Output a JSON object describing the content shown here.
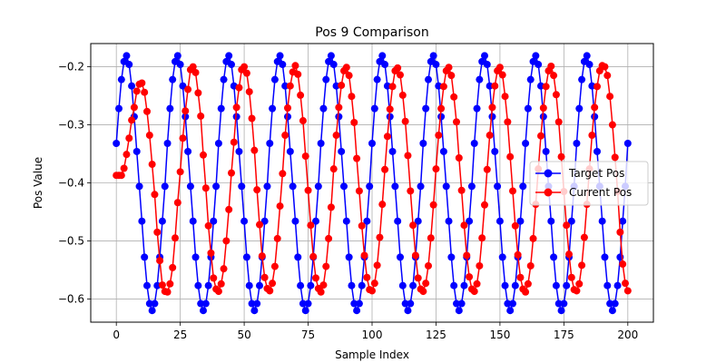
{
  "chart_data": {
    "type": "line",
    "title": "Pos 9 Comparison",
    "xlabel": "Sample Index",
    "ylabel": "Pos Value",
    "xlim": [
      -10,
      210
    ],
    "ylim": [
      -0.64,
      -0.16
    ],
    "xticks": [
      0,
      25,
      50,
      75,
      100,
      125,
      150,
      175,
      200
    ],
    "yticks": [
      -0.6,
      -0.5,
      -0.4,
      -0.3,
      -0.2
    ],
    "grid": true,
    "legend": {
      "placement": "center-right",
      "entries": [
        "Target Pos",
        "Current Pos"
      ]
    },
    "x": [
      0,
      1,
      2,
      3,
      4,
      5,
      6,
      7,
      8,
      9,
      10,
      11,
      12,
      13,
      14,
      15,
      16,
      17,
      18,
      19,
      20,
      21,
      22,
      23,
      24,
      25,
      26,
      27,
      28,
      29,
      30,
      31,
      32,
      33,
      34,
      35,
      36,
      37,
      38,
      39,
      40,
      41,
      42,
      43,
      44,
      45,
      46,
      47,
      48,
      49,
      50,
      51,
      52,
      53,
      54,
      55,
      56,
      57,
      58,
      59,
      60,
      61,
      62,
      63,
      64,
      65,
      66,
      67,
      68,
      69,
      70,
      71,
      72,
      73,
      74,
      75,
      76,
      77,
      78,
      79,
      80,
      81,
      82,
      83,
      84,
      85,
      86,
      87,
      88,
      89,
      90,
      91,
      92,
      93,
      94,
      95,
      96,
      97,
      98,
      99,
      100,
      101,
      102,
      103,
      104,
      105,
      106,
      107,
      108,
      109,
      110,
      111,
      112,
      113,
      114,
      115,
      116,
      117,
      118,
      119,
      120,
      121,
      122,
      123,
      124,
      125,
      126,
      127,
      128,
      129,
      130,
      131,
      132,
      133,
      134,
      135,
      136,
      137,
      138,
      139,
      140,
      141,
      142,
      143,
      144,
      145,
      146,
      147,
      148,
      149,
      150,
      151,
      152,
      153,
      154,
      155,
      156,
      157,
      158,
      159,
      160,
      161,
      162,
      163,
      164,
      165,
      166,
      167,
      168,
      169,
      170,
      171,
      172,
      173,
      174,
      175,
      176,
      177,
      178,
      179,
      180,
      181,
      182,
      183,
      184,
      185,
      186,
      187,
      188,
      189,
      190,
      191,
      192,
      193,
      194,
      195,
      196,
      197,
      198,
      199,
      200
    ],
    "series": [
      {
        "name": "Target Pos",
        "color": "#0000ff",
        "values": [
          -0.332,
          -0.272,
          -0.222,
          -0.191,
          -0.181,
          -0.196,
          -0.233,
          -0.286,
          -0.346,
          -0.406,
          -0.466,
          -0.528,
          -0.577,
          -0.608,
          -0.62,
          -0.608,
          -0.577,
          -0.528,
          -0.466,
          -0.406,
          -0.332,
          -0.272,
          -0.222,
          -0.191,
          -0.181,
          -0.196,
          -0.233,
          -0.286,
          -0.346,
          -0.406,
          -0.466,
          -0.528,
          -0.577,
          -0.608,
          -0.62,
          -0.608,
          -0.577,
          -0.528,
          -0.466,
          -0.406,
          -0.332,
          -0.272,
          -0.222,
          -0.191,
          -0.181,
          -0.196,
          -0.233,
          -0.286,
          -0.346,
          -0.406,
          -0.466,
          -0.528,
          -0.577,
          -0.608,
          -0.62,
          -0.608,
          -0.577,
          -0.528,
          -0.466,
          -0.406,
          -0.332,
          -0.272,
          -0.222,
          -0.191,
          -0.181,
          -0.196,
          -0.233,
          -0.286,
          -0.346,
          -0.406,
          -0.466,
          -0.528,
          -0.577,
          -0.608,
          -0.62,
          -0.608,
          -0.577,
          -0.528,
          -0.466,
          -0.406,
          -0.332,
          -0.272,
          -0.222,
          -0.191,
          -0.181,
          -0.196,
          -0.233,
          -0.286,
          -0.346,
          -0.406,
          -0.466,
          -0.528,
          -0.577,
          -0.608,
          -0.62,
          -0.608,
          -0.577,
          -0.528,
          -0.466,
          -0.406,
          -0.332,
          -0.272,
          -0.222,
          -0.191,
          -0.181,
          -0.196,
          -0.233,
          -0.286,
          -0.346,
          -0.406,
          -0.466,
          -0.528,
          -0.577,
          -0.608,
          -0.62,
          -0.608,
          -0.577,
          -0.528,
          -0.466,
          -0.406,
          -0.332,
          -0.272,
          -0.222,
          -0.191,
          -0.181,
          -0.196,
          -0.233,
          -0.286,
          -0.346,
          -0.406,
          -0.466,
          -0.528,
          -0.577,
          -0.608,
          -0.62,
          -0.608,
          -0.577,
          -0.528,
          -0.466,
          -0.406,
          -0.332,
          -0.272,
          -0.222,
          -0.191,
          -0.181,
          -0.196,
          -0.233,
          -0.286,
          -0.346,
          -0.406,
          -0.466,
          -0.528,
          -0.577,
          -0.608,
          -0.62,
          -0.608,
          -0.577,
          -0.528,
          -0.466,
          -0.406,
          -0.332,
          -0.272,
          -0.222,
          -0.191,
          -0.181,
          -0.196,
          -0.233,
          -0.286,
          -0.346,
          -0.406,
          -0.466,
          -0.528,
          -0.577,
          -0.608,
          -0.62,
          -0.608,
          -0.577,
          -0.528,
          -0.466,
          -0.406,
          -0.332,
          -0.272,
          -0.222,
          -0.191,
          -0.181,
          -0.196,
          -0.233,
          -0.286,
          -0.346,
          -0.406,
          -0.466,
          -0.528,
          -0.577,
          -0.608,
          -0.62,
          -0.608,
          -0.577,
          -0.528,
          -0.466,
          -0.406,
          -0.332
        ]
      },
      {
        "name": "Current Pos",
        "color": "#ff0000",
        "values": [
          -0.387,
          -0.387,
          -0.387,
          -0.375,
          -0.351,
          -0.323,
          -0.292,
          -0.27,
          -0.242,
          -0.23,
          -0.228,
          -0.244,
          -0.277,
          -0.318,
          -0.368,
          -0.42,
          -0.485,
          -0.534,
          -0.576,
          -0.587,
          -0.588,
          -0.574,
          -0.546,
          -0.495,
          -0.434,
          -0.381,
          -0.323,
          -0.276,
          -0.239,
          -0.205,
          -0.2,
          -0.21,
          -0.245,
          -0.285,
          -0.352,
          -0.409,
          -0.474,
          -0.521,
          -0.564,
          -0.583,
          -0.587,
          -0.574,
          -0.548,
          -0.5,
          -0.446,
          -0.383,
          -0.33,
          -0.27,
          -0.236,
          -0.205,
          -0.2,
          -0.211,
          -0.243,
          -0.289,
          -0.344,
          -0.412,
          -0.472,
          -0.526,
          -0.563,
          -0.582,
          -0.586,
          -0.573,
          -0.544,
          -0.496,
          -0.44,
          -0.384,
          -0.318,
          -0.271,
          -0.233,
          -0.209,
          -0.198,
          -0.213,
          -0.249,
          -0.293,
          -0.354,
          -0.413,
          -0.473,
          -0.527,
          -0.564,
          -0.582,
          -0.588,
          -0.576,
          -0.544,
          -0.496,
          -0.442,
          -0.376,
          -0.318,
          -0.27,
          -0.232,
          -0.207,
          -0.201,
          -0.215,
          -0.251,
          -0.296,
          -0.358,
          -0.414,
          -0.474,
          -0.525,
          -0.563,
          -0.584,
          -0.586,
          -0.573,
          -0.542,
          -0.494,
          -0.437,
          -0.377,
          -0.32,
          -0.273,
          -0.234,
          -0.207,
          -0.202,
          -0.214,
          -0.249,
          -0.294,
          -0.353,
          -0.414,
          -0.473,
          -0.525,
          -0.564,
          -0.583,
          -0.587,
          -0.573,
          -0.543,
          -0.495,
          -0.438,
          -0.376,
          -0.318,
          -0.272,
          -0.234,
          -0.207,
          -0.201,
          -0.215,
          -0.252,
          -0.295,
          -0.357,
          -0.413,
          -0.473,
          -0.525,
          -0.562,
          -0.583,
          -0.587,
          -0.574,
          -0.543,
          -0.495,
          -0.438,
          -0.377,
          -0.318,
          -0.27,
          -0.233,
          -0.207,
          -0.201,
          -0.214,
          -0.251,
          -0.295,
          -0.355,
          -0.414,
          -0.474,
          -0.524,
          -0.563,
          -0.583,
          -0.588,
          -0.574,
          -0.543,
          -0.496,
          -0.437,
          -0.376,
          -0.319,
          -0.271,
          -0.234,
          -0.207,
          -0.199,
          -0.215,
          -0.248,
          -0.295,
          -0.355,
          -0.415,
          -0.473,
          -0.523,
          -0.563,
          -0.584,
          -0.586,
          -0.574,
          -0.542,
          -0.494,
          -0.437,
          -0.376,
          -0.318,
          -0.27,
          -0.234,
          -0.207,
          -0.198,
          -0.2,
          -0.215,
          -0.251,
          -0.3,
          -0.356,
          -0.415,
          -0.485,
          -0.54,
          -0.573,
          -0.586
        ]
      }
    ]
  }
}
